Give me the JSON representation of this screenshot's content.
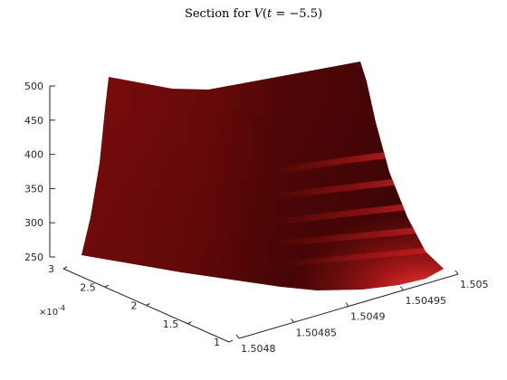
{
  "chart_data": {
    "type": "surface",
    "title": "Section for V(t = −5.5)",
    "title_parts": {
      "prefix": "Section for ",
      "var": "V",
      "open": "(",
      "t": "t",
      "rest": " = −5.5)"
    },
    "x_ticks": [
      "1.5048",
      "1.50485",
      "1.5049",
      "1.50495",
      "1.505"
    ],
    "y_ticks": [
      "1",
      "1.5",
      "2",
      "2.5",
      "3"
    ],
    "y_multiplier": "×10",
    "y_multiplier_exp": "-4",
    "z_ticks": [
      "250",
      "300",
      "350",
      "400",
      "450",
      "500"
    ],
    "xlim": [
      1.5048,
      1.505
    ],
    "ylim": [
      0.0001,
      0.0003
    ],
    "zlim": [
      250,
      500
    ],
    "colors": {
      "surface_dark": "#4a0505",
      "surface_mid": "#6e0a0a",
      "surface_light": "#a01616",
      "surface_highlight": "#ff3b3b",
      "axis": "#262626"
    }
  }
}
